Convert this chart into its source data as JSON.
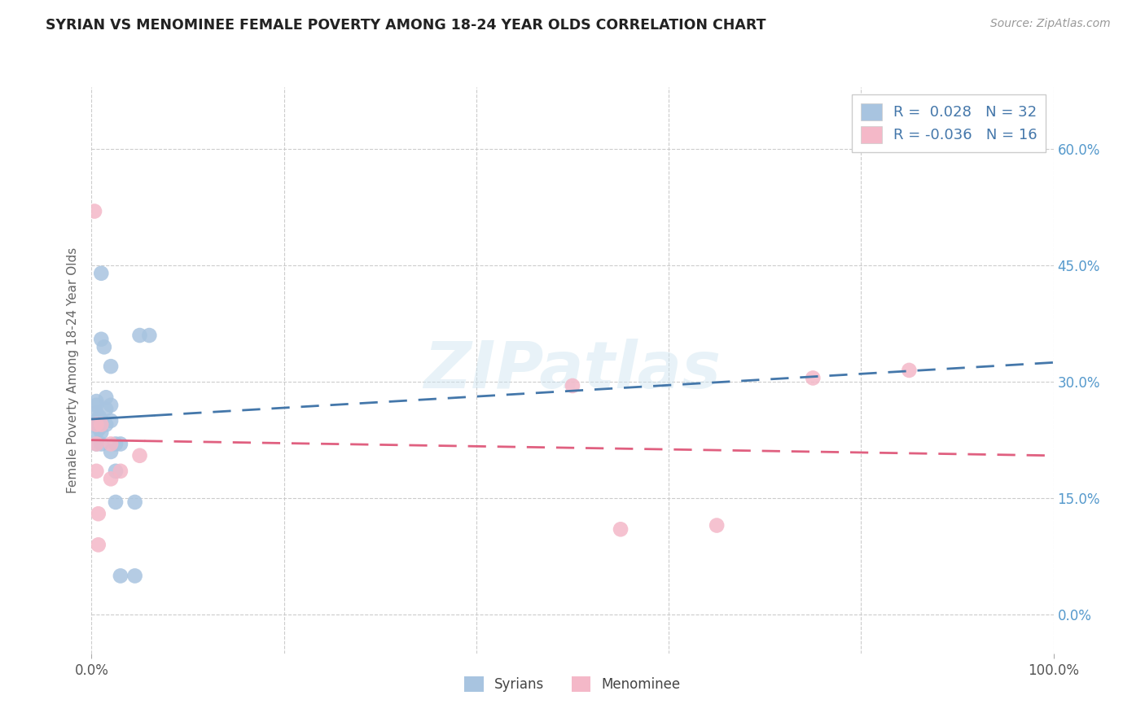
{
  "title": "SYRIAN VS MENOMINEE FEMALE POVERTY AMONG 18-24 YEAR OLDS CORRELATION CHART",
  "source": "Source: ZipAtlas.com",
  "ylabel": "Female Poverty Among 18-24 Year Olds",
  "xlim": [
    0.0,
    1.0
  ],
  "ylim": [
    -0.05,
    0.68
  ],
  "xticks": [
    0.0,
    1.0
  ],
  "xticklabels": [
    "0.0%",
    "100.0%"
  ],
  "yticks": [
    0.0,
    0.15,
    0.3,
    0.45,
    0.6
  ],
  "right_yticklabels": [
    "0.0%",
    "15.0%",
    "30.0%",
    "45.0%",
    "60.0%"
  ],
  "syrians_x": [
    0.005,
    0.005,
    0.005,
    0.005,
    0.005,
    0.005,
    0.005,
    0.008,
    0.008,
    0.008,
    0.01,
    0.01,
    0.01,
    0.01,
    0.01,
    0.013,
    0.015,
    0.015,
    0.015,
    0.02,
    0.02,
    0.02,
    0.02,
    0.025,
    0.025,
    0.025,
    0.03,
    0.03,
    0.045,
    0.045,
    0.05,
    0.06
  ],
  "syrians_y": [
    0.22,
    0.245,
    0.26,
    0.275,
    0.25,
    0.235,
    0.27,
    0.25,
    0.255,
    0.24,
    0.44,
    0.355,
    0.25,
    0.235,
    0.22,
    0.345,
    0.28,
    0.265,
    0.245,
    0.32,
    0.27,
    0.25,
    0.21,
    0.185,
    0.145,
    0.22,
    0.22,
    0.05,
    0.05,
    0.145,
    0.36,
    0.36
  ],
  "menominee_x": [
    0.003,
    0.005,
    0.005,
    0.005,
    0.007,
    0.007,
    0.01,
    0.02,
    0.02,
    0.03,
    0.05,
    0.5,
    0.55,
    0.65,
    0.75,
    0.85
  ],
  "menominee_y": [
    0.52,
    0.245,
    0.22,
    0.185,
    0.09,
    0.13,
    0.245,
    0.22,
    0.175,
    0.185,
    0.205,
    0.295,
    0.11,
    0.115,
    0.305,
    0.315
  ],
  "syrian_color": "#a8c4e0",
  "menominee_color": "#f4b8c8",
  "syrian_line_color": "#4477aa",
  "menominee_line_color": "#e06080",
  "R_syrian": 0.028,
  "N_syrian": 32,
  "R_menominee": -0.036,
  "N_menominee": 16,
  "watermark": "ZIPatlas",
  "background_color": "#ffffff",
  "grid_color": "#cccccc",
  "legend_bottom_labels": [
    "Syrians",
    "Menominee"
  ],
  "syrian_line_y0": 0.252,
  "syrian_line_y1": 0.325,
  "menominee_line_y0": 0.225,
  "menominee_line_y1": 0.205
}
